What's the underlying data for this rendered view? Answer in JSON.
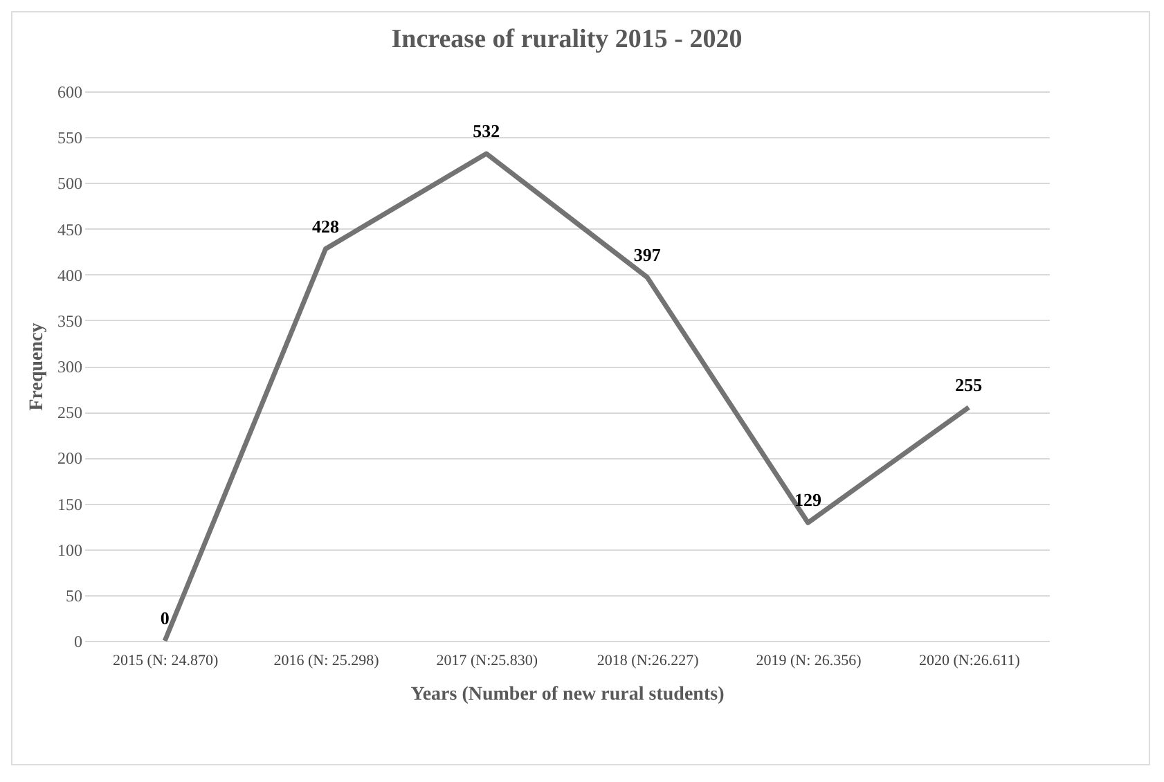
{
  "chart_data": {
    "type": "line",
    "title": "Increase of rurality 2015 - 2020",
    "xlabel": "Years (Number of new rural students)",
    "ylabel": "Frequency",
    "categories": [
      "2015 (N: 24.870)",
      "2016 (N: 25.298)",
      "2017 (N:25.830)",
      "2018 (N:26.227)",
      "2019 (N: 26.356)",
      "2020 (N:26.611)"
    ],
    "series": [
      {
        "color": "#737373",
        "values": [
          0,
          428,
          532,
          397,
          129,
          255
        ]
      }
    ],
    "ylim": [
      0,
      600
    ],
    "yticks": [
      0,
      50,
      100,
      150,
      200,
      250,
      300,
      350,
      400,
      450,
      500,
      550,
      600
    ],
    "grid": "y",
    "data_labels": true
  }
}
